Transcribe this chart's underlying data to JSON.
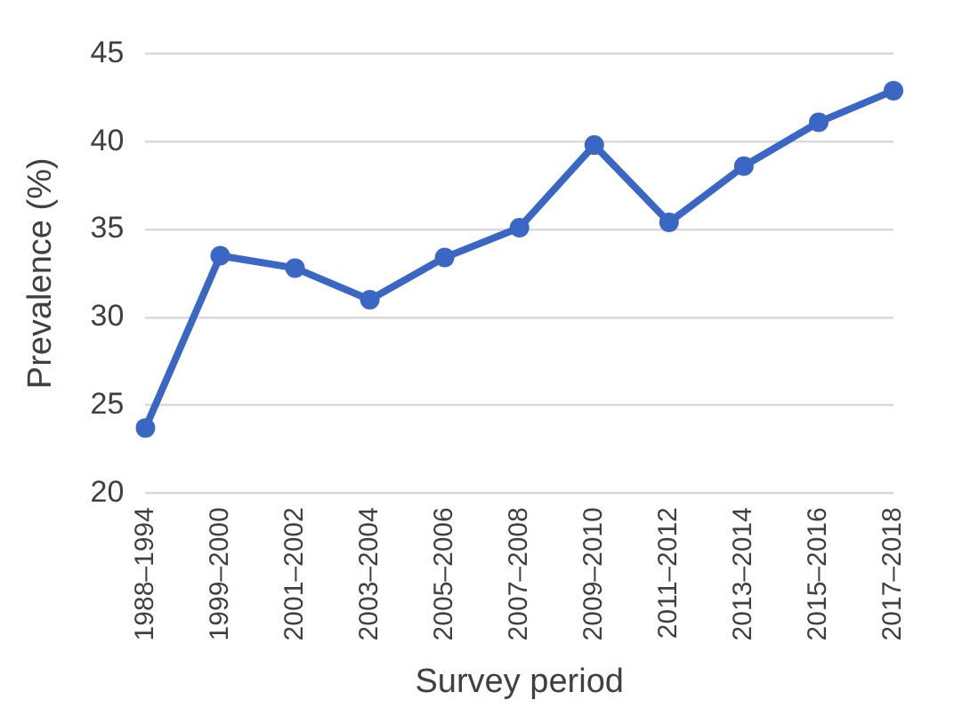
{
  "chart_data": {
    "type": "line",
    "xlabel": "Survey period",
    "ylabel": "Prevalence (%)",
    "categories": [
      "1988–1994",
      "1999–2000",
      "2001–2002",
      "2003–2004",
      "2005–2006",
      "2007–2008",
      "2009–2010",
      "2011–2012",
      "2013–2014",
      "2015–2016",
      "2017–2018"
    ],
    "series": [
      {
        "color": "#3a66c4",
        "values": [
          23.7,
          33.5,
          32.8,
          31.0,
          33.4,
          35.1,
          39.8,
          35.4,
          38.6,
          41.1,
          42.9
        ]
      }
    ],
    "ylim": [
      20,
      45
    ],
    "yticks": [
      20,
      25,
      30,
      35,
      40,
      45
    ],
    "grid": "y",
    "marker": "circle",
    "line_style": "solid",
    "legend": false
  }
}
